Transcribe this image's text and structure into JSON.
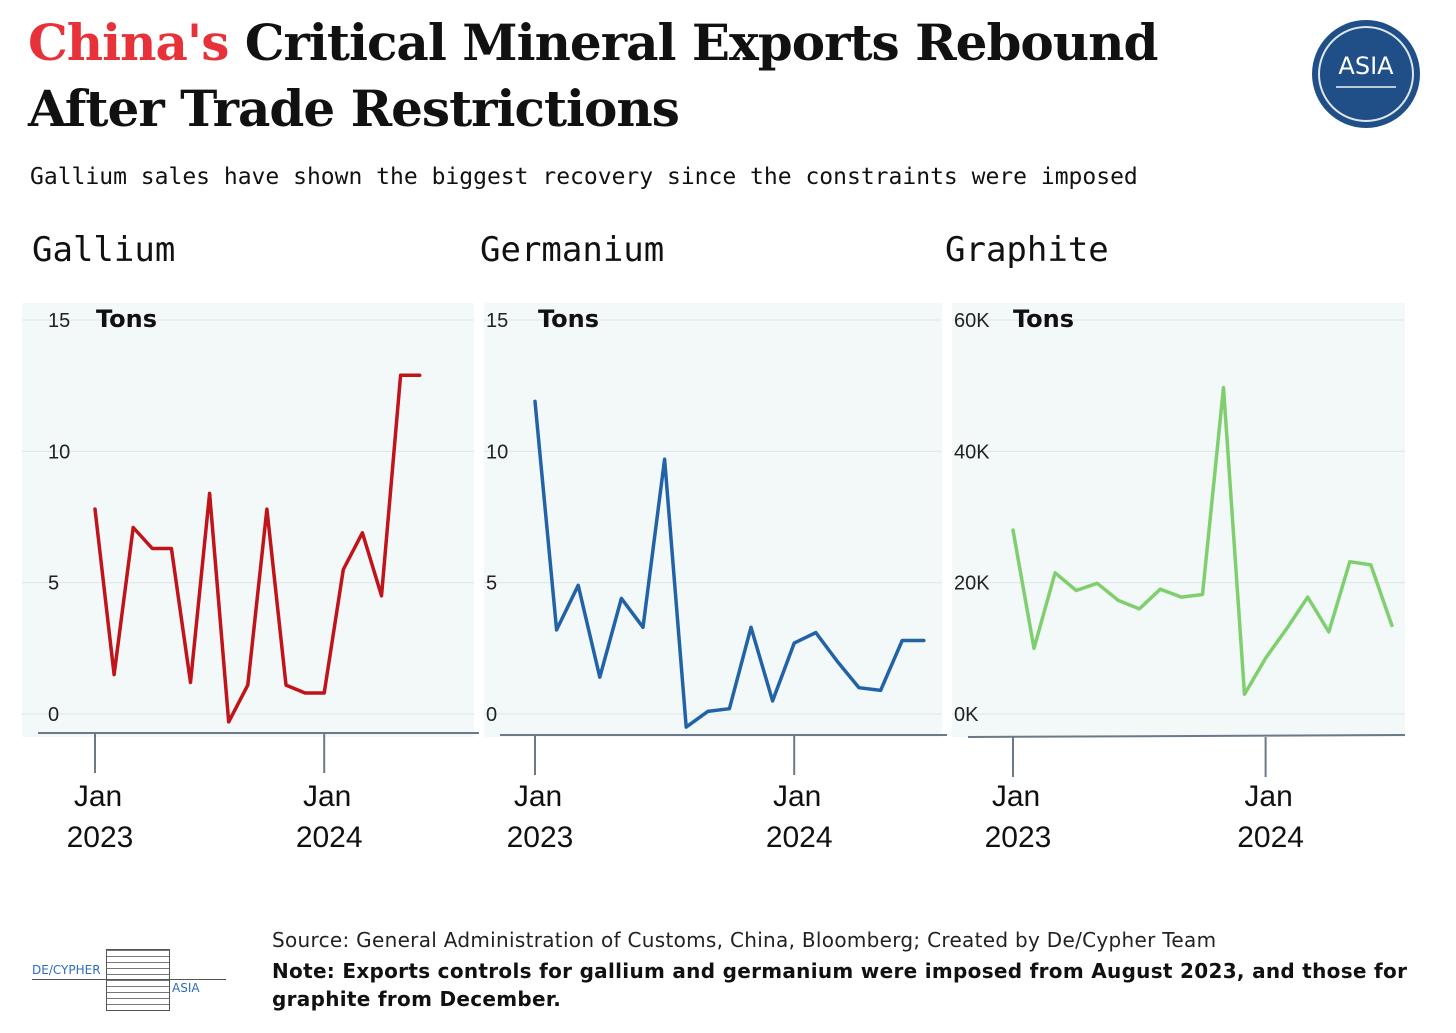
{
  "header": {
    "title_highlight": "China's",
    "title_rest": " Critical Mineral Exports Rebound After Trade Restrictions",
    "subtitle": "Gallium sales have shown the biggest recovery since the constraints were imposed",
    "logo_text": "ASIA"
  },
  "footer": {
    "source": "Source: General Administration of Customs, China, Bloomberg; Created by De/Cypher Team",
    "note": "Note: Exports controls for gallium and germanium were imposed from August 2023, and those for graphite from December.",
    "logo_left": "DE/CYPHER",
    "logo_right": "ASIA"
  },
  "chart_data": [
    {
      "type": "line",
      "title": "Gallium",
      "ylabel": "Tons",
      "color": "#c0131a",
      "ylim": [
        0,
        15
      ],
      "yticks": [
        0,
        5,
        10,
        15
      ],
      "ytick_labels": [
        "0",
        "5",
        "10",
        "15"
      ],
      "xticks": [
        {
          "at": "2023-01",
          "label1": "Jan",
          "label2": "2023"
        },
        {
          "at": "2024-01",
          "label1": "Jan",
          "label2": "2024"
        }
      ],
      "x": [
        "2023-01",
        "2023-02",
        "2023-03",
        "2023-04",
        "2023-05",
        "2023-06",
        "2023-07",
        "2023-08",
        "2023-09",
        "2023-10",
        "2023-11",
        "2023-12",
        "2024-01",
        "2024-02",
        "2024-03",
        "2024-04",
        "2024-05",
        "2024-06"
      ],
      "values": [
        7.8,
        1.5,
        7.1,
        6.3,
        6.3,
        1.2,
        8.4,
        -0.3,
        1.1,
        7.8,
        1.1,
        0.8,
        0.8,
        5.5,
        6.9,
        4.5,
        12.9,
        12.9
      ]
    },
    {
      "type": "line",
      "title": "Germanium",
      "ylabel": "Tons",
      "color": "#2263a8",
      "ylim": [
        0,
        15
      ],
      "yticks": [
        0,
        5,
        10,
        15
      ],
      "ytick_labels": [
        "0",
        "5",
        "10",
        "15"
      ],
      "xticks": [
        {
          "at": "2023-01",
          "label1": "Jan",
          "label2": "2023"
        },
        {
          "at": "2024-01",
          "label1": "Jan",
          "label2": "2024"
        }
      ],
      "x": [
        "2023-01",
        "2023-02",
        "2023-03",
        "2023-04",
        "2023-05",
        "2023-06",
        "2023-07",
        "2023-08",
        "2023-09",
        "2023-10",
        "2023-11",
        "2023-12",
        "2024-01",
        "2024-02",
        "2024-03",
        "2024-04",
        "2024-05",
        "2024-06",
        "2024-07"
      ],
      "values": [
        11.9,
        3.2,
        4.9,
        1.4,
        4.4,
        3.3,
        9.7,
        -0.5,
        0.1,
        0.2,
        3.3,
        0.5,
        2.7,
        3.1,
        2.0,
        1.0,
        0.9,
        2.8,
        2.8
      ]
    },
    {
      "type": "line",
      "title": "Graphite",
      "ylabel": "Tons",
      "color": "#7fcf6e",
      "ylim": [
        0,
        60000
      ],
      "yticks": [
        0,
        20000,
        40000,
        60000
      ],
      "ytick_labels": [
        "0K",
        "20K",
        "40K",
        "60K"
      ],
      "xticks": [
        {
          "at": "2023-01",
          "label1": "Jan",
          "label2": "2023"
        },
        {
          "at": "2024-01",
          "label1": "Jan",
          "label2": "2024"
        }
      ],
      "x": [
        "2023-01",
        "2023-02",
        "2023-03",
        "2023-04",
        "2023-05",
        "2023-06",
        "2023-07",
        "2023-08",
        "2023-09",
        "2023-10",
        "2023-11",
        "2023-12",
        "2024-01",
        "2024-02",
        "2024-03",
        "2024-04",
        "2024-05",
        "2024-06",
        "2024-07"
      ],
      "values": [
        28000,
        10000,
        21500,
        18800,
        19900,
        17300,
        16000,
        19000,
        17800,
        18200,
        49700,
        3000,
        8500,
        13000,
        17800,
        12500,
        23200,
        22700,
        13500
      ]
    }
  ]
}
